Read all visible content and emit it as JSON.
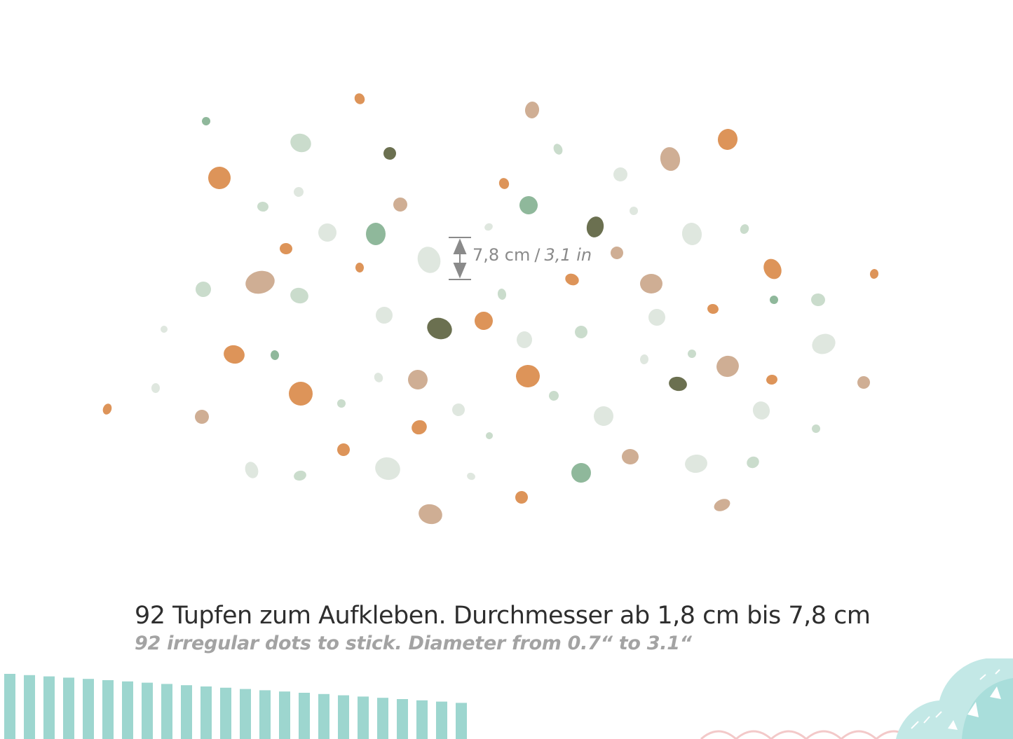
{
  "measurement": {
    "metric": "7,8 cm",
    "separator": "/",
    "imperial": "3,1 in"
  },
  "caption": {
    "de": "92 Tupfen zum Aufkleben. Durchmesser ab 1,8 cm bis 7,8 cm",
    "en": "92 irregular dots to stick. Diameter from 0.7“ to 3.1“"
  },
  "colors": {
    "orange": "#dd9459",
    "tan": "#cfae94",
    "sage": "#8fb89b",
    "pale_green": "#dfe7df",
    "olive": "#6b7050",
    "light_sage": "#cadccc",
    "teal_stripes": "#8ccfc7",
    "teal_hill": "#c3e8e6",
    "pink_outline": "#f3c9c9",
    "measure_gray": "#8a8a8a"
  },
  "decor": {
    "stripes_icon": "teal-vertical-stripes",
    "hill_icon": "teal-hill-illustration"
  }
}
